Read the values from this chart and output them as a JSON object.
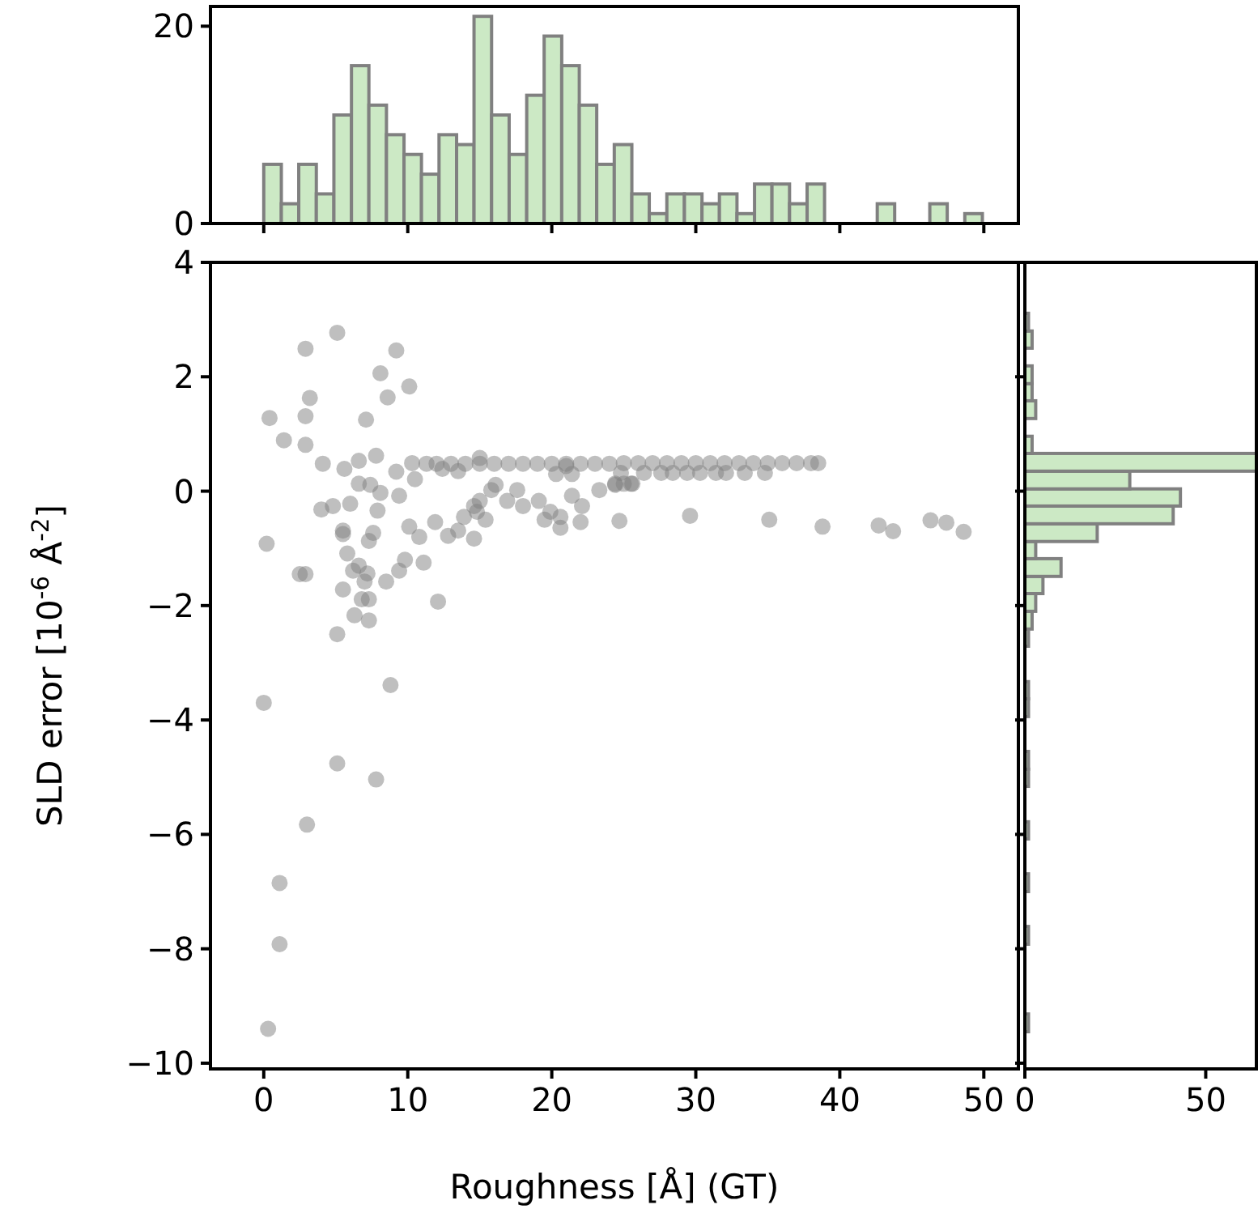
{
  "chart_data": [
    {
      "type": "histogram",
      "color": "#cce9c5",
      "xlim": [
        -3.7,
        52.4
      ],
      "xticks": [
        0,
        10,
        20,
        30,
        40,
        50
      ],
      "ylim": [
        0,
        22
      ],
      "yticks": [
        0,
        20
      ],
      "tick_labels": "y",
      "bins": [
        0,
        1.22,
        2.43,
        3.65,
        4.87,
        6.09,
        7.3,
        8.52,
        9.74,
        10.95,
        12.17,
        13.39,
        14.6,
        15.82,
        17.04,
        18.26,
        19.47,
        20.69,
        21.91,
        23.12,
        24.34,
        25.56,
        26.77,
        27.99,
        29.21,
        30.43,
        31.64,
        32.86,
        34.08,
        35.29,
        36.51,
        37.73,
        38.94,
        40.16,
        41.38,
        42.6,
        43.81,
        45.03,
        46.25,
        47.46,
        48.68,
        49.9
      ],
      "values": [
        6,
        2,
        6,
        3,
        11,
        16,
        12,
        9,
        7,
        5,
        9,
        8,
        21,
        11,
        7,
        13,
        19,
        16,
        12,
        6,
        8,
        3,
        1,
        3,
        3,
        2,
        3,
        1,
        4,
        4,
        2,
        4,
        0,
        0,
        0,
        2,
        0,
        0,
        2,
        0,
        1
      ]
    },
    {
      "type": "scatter",
      "color": "#808080",
      "marker": "circle",
      "xlabel": "Roughness [Å] (GT)",
      "ylabel": "SLD error [10$^{-6}$ Å$^{-2}$]",
      "xlim": [
        -3.7,
        52.4
      ],
      "xticks": [
        0,
        10,
        20,
        30,
        40,
        50
      ],
      "ylim": [
        -10.1,
        4
      ],
      "yticks": [
        -10,
        -8,
        -6,
        -4,
        -2,
        0,
        2,
        4
      ],
      "x": [
        2.9,
        5.1,
        9.2,
        8.1,
        10.1,
        3.2,
        8.6,
        0.4,
        2.9,
        7.1,
        1.4,
        2.9,
        4.1,
        5.6,
        6.6,
        7.8,
        9.2,
        10.3,
        10.5,
        6.6,
        7.4,
        8.1,
        9.4,
        7.9,
        4.0,
        4.8,
        6.0,
        0.2,
        5.5,
        5.5,
        7.3,
        7.6,
        10.1,
        10.8,
        11.9,
        5.8,
        2.5,
        2.9,
        6.2,
        6.6,
        7.2,
        7.0,
        8.5,
        9.4,
        9.8,
        11.1,
        5.5,
        6.8,
        7.3,
        6.3,
        7.3,
        12.1,
        5.1,
        8.8,
        0.0,
        5.1,
        7.8,
        3.0,
        1.1,
        1.1,
        0.3,
        12.8,
        13.5,
        14.6,
        14.8,
        15.0,
        15.4,
        15.8,
        16.1,
        16.9,
        18.0,
        19.1,
        19.9,
        20.6,
        21.4,
        22.1,
        22.0,
        23.3,
        24.4,
        25.5,
        24.7,
        19.5,
        20.6,
        13.9,
        14.6,
        17.6,
        20.3,
        21.0,
        21.4,
        12.4,
        13.5,
        15.0,
        11.3,
        12.0,
        13.0,
        14.0,
        15.0,
        16.0,
        17.0,
        18.0,
        19.0,
        20.0,
        21.0,
        22.0,
        23.0,
        24.0,
        25.0,
        26.0,
        27.0,
        28.0,
        29.0,
        30.0,
        31.0,
        32.0,
        33.0,
        34.0,
        35.0,
        36.0,
        37.0,
        38.0,
        38.5,
        24.8,
        26.4,
        27.6,
        28.4,
        29.4,
        30.3,
        31.4,
        32.1,
        33.4,
        34.8,
        24.4,
        25.0,
        25.6,
        29.6,
        35.1,
        38.8,
        42.7,
        43.7,
        46.3,
        47.4,
        48.6
      ],
      "values": [
        2.49,
        2.77,
        2.46,
        2.06,
        1.83,
        1.63,
        1.64,
        1.28,
        1.31,
        1.25,
        0.89,
        0.81,
        0.48,
        0.39,
        0.53,
        0.62,
        0.34,
        0.49,
        0.21,
        0.13,
        0.11,
        -0.03,
        -0.08,
        -0.34,
        -0.32,
        -0.26,
        -0.22,
        -0.92,
        -0.69,
        -0.75,
        -0.87,
        -0.73,
        -0.62,
        -0.8,
        -0.54,
        -1.09,
        -1.45,
        -1.45,
        -1.39,
        -1.3,
        -1.44,
        -1.58,
        -1.58,
        -1.39,
        -1.2,
        -1.25,
        -1.72,
        -1.89,
        -1.89,
        -2.17,
        -2.26,
        -1.93,
        -2.5,
        -3.39,
        -3.7,
        -4.76,
        -5.04,
        -5.83,
        -6.85,
        -7.92,
        -9.4,
        -0.78,
        -0.69,
        -0.83,
        -0.36,
        -0.17,
        -0.5,
        0.02,
        0.11,
        -0.17,
        -0.26,
        -0.17,
        -0.36,
        -0.45,
        -0.08,
        -0.26,
        -0.54,
        0.02,
        0.11,
        0.13,
        -0.52,
        -0.5,
        -0.64,
        -0.45,
        -0.26,
        0.02,
        0.3,
        0.44,
        0.3,
        0.39,
        0.35,
        0.58,
        0.48,
        0.48,
        0.48,
        0.48,
        0.48,
        0.48,
        0.48,
        0.48,
        0.48,
        0.48,
        0.48,
        0.48,
        0.48,
        0.48,
        0.49,
        0.49,
        0.49,
        0.49,
        0.49,
        0.49,
        0.49,
        0.49,
        0.49,
        0.49,
        0.49,
        0.49,
        0.49,
        0.49,
        0.49,
        0.32,
        0.32,
        0.32,
        0.32,
        0.32,
        0.32,
        0.32,
        0.32,
        0.32,
        0.32,
        0.13,
        0.13,
        0.13,
        -0.43,
        -0.5,
        -0.62,
        -0.6,
        -0.7,
        -0.51,
        -0.55,
        -0.71
      ]
    },
    {
      "type": "histogram",
      "orientation": "horizontal",
      "color": "#cce9c5",
      "ylim": [
        -10.1,
        4
      ],
      "yticks": [
        -10,
        -8,
        -6,
        -4,
        -2,
        0,
        2,
        4
      ],
      "xlim": [
        0,
        64
      ],
      "xticks": [
        0,
        50
      ],
      "tick_labels": "x",
      "bins": [
        -9.45,
        -9.14,
        -7.92,
        -7.61,
        -7.0,
        -6.69,
        -6.08,
        -5.78,
        -5.16,
        -4.86,
        -4.55,
        -3.94,
        -3.63,
        -3.33,
        -2.71,
        -2.41,
        -2.1,
        -1.79,
        -1.49,
        -1.18,
        -0.88,
        -0.57,
        -0.26,
        0.04,
        0.35,
        0.66,
        0.96,
        1.27,
        1.58,
        1.88,
        2.19,
        2.5,
        2.8,
        3.11
      ],
      "values": [
        1,
        0,
        1,
        0,
        1,
        0,
        1,
        0,
        1,
        1,
        0,
        1,
        1,
        0,
        1,
        2,
        3,
        5,
        10,
        3,
        20,
        41,
        43,
        29,
        64,
        2,
        0,
        3,
        2,
        2,
        0,
        2,
        1
      ]
    }
  ]
}
